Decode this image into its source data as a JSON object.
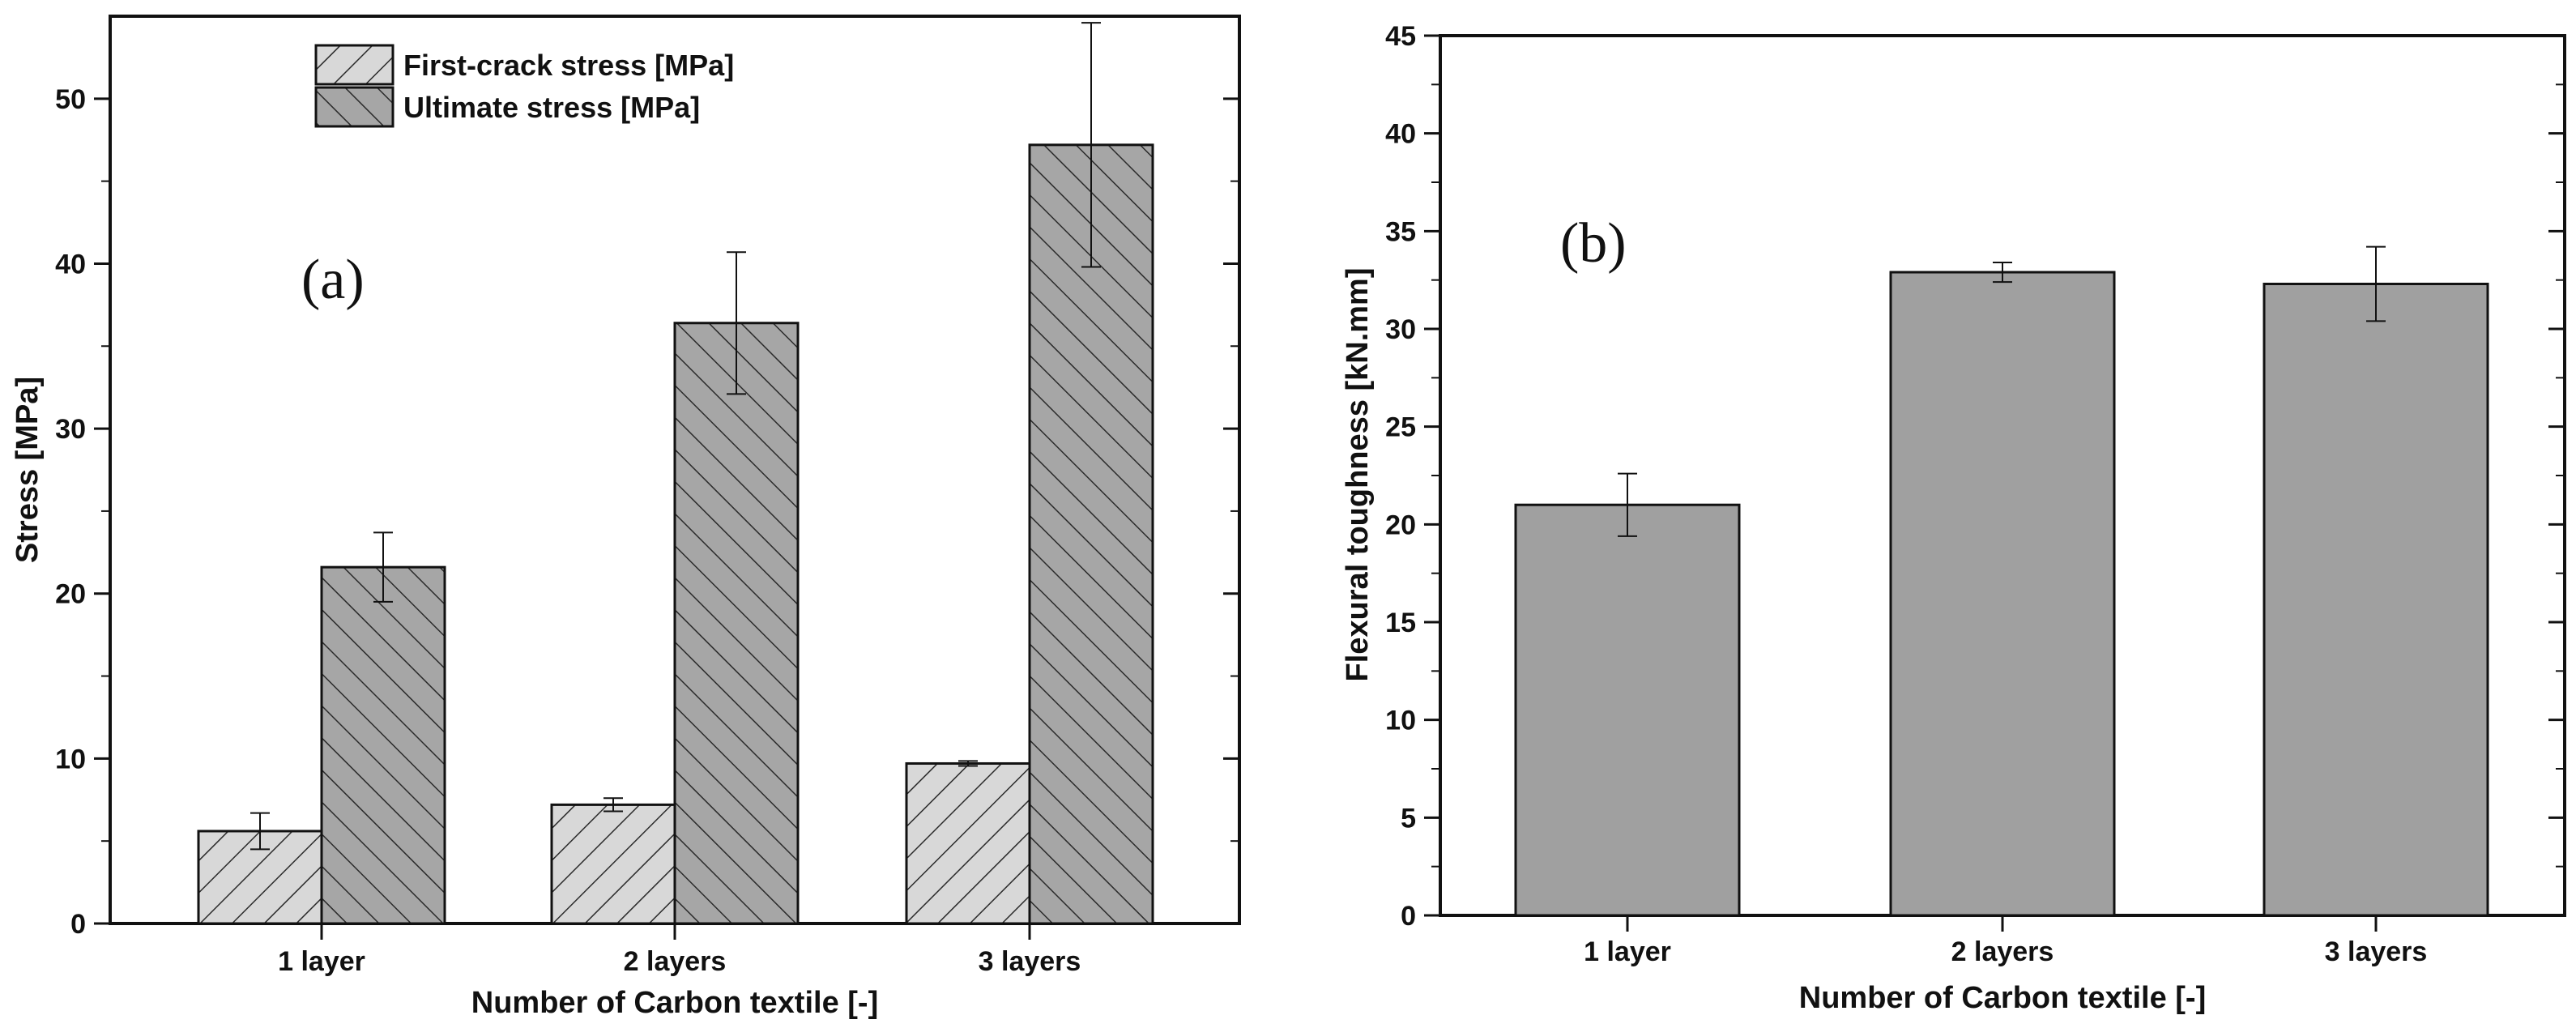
{
  "chart_data": [
    {
      "type": "bar",
      "panel_label": "(a)",
      "title": "",
      "xlabel": "Number of Carbon textile [-]",
      "ylabel": "Stress [MPa]",
      "ylim": [
        0,
        55
      ],
      "yticks": [
        0,
        10,
        20,
        30,
        40,
        50
      ],
      "categories": [
        "1 layer",
        "2 layers",
        "3 layers"
      ],
      "grid": false,
      "legend_position": "top-center",
      "series": [
        {
          "name": "First-crack stress [MPa]",
          "values": [
            5.6,
            7.2,
            9.7
          ],
          "errors": [
            1.1,
            0.4,
            0.15
          ],
          "color": "#d8d8d8",
          "hatch": "forward-diagonal"
        },
        {
          "name": "Ultimate stress [MPa]",
          "values": [
            21.6,
            36.4,
            47.2
          ],
          "errors": [
            2.1,
            4.3,
            7.4
          ],
          "color": "#a6a6a6",
          "hatch": "back-diagonal"
        }
      ]
    },
    {
      "type": "bar",
      "panel_label": "(b)",
      "title": "",
      "xlabel": "Number of Carbon textile [-]",
      "ylabel": "Flexural toughness [kN.mm]",
      "ylim": [
        0,
        45
      ],
      "yticks": [
        0,
        5,
        10,
        15,
        20,
        25,
        30,
        35,
        40,
        45
      ],
      "categories": [
        "1 layer",
        "2 layers",
        "3 layers"
      ],
      "grid": false,
      "series": [
        {
          "name": "Flexural toughness [kN.mm]",
          "values": [
            21.0,
            32.9,
            32.3
          ],
          "errors": [
            1.6,
            0.5,
            1.9
          ],
          "color": "#a0a0a0"
        }
      ]
    }
  ]
}
